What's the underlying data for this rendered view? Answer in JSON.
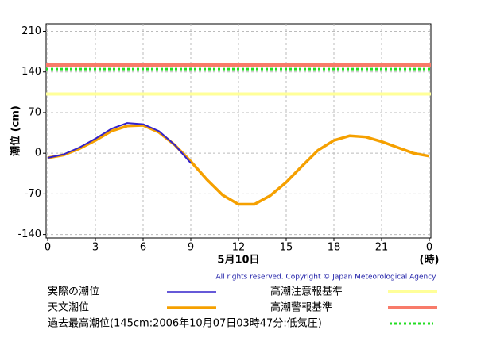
{
  "chart_data": {
    "type": "line",
    "y_label": "潮位 (cm)",
    "x_label": "5月10日",
    "x_unit": "(時)",
    "copyright": "All rights reserved. Copyright © Japan Meteorological Agency",
    "x": [
      0,
      1,
      2,
      3,
      4,
      5,
      6,
      7,
      8,
      9,
      10,
      11,
      12,
      13,
      14,
      15,
      16,
      17,
      18,
      19,
      20,
      21,
      22,
      23,
      24
    ],
    "series": [
      {
        "name": "実際の潮位",
        "color": "#3322cc",
        "values": [
          -8,
          -2,
          10,
          25,
          42,
          52,
          50,
          38,
          14,
          -17,
          null,
          null,
          null,
          null,
          null,
          null,
          null,
          null,
          null,
          null,
          null,
          null,
          null,
          null,
          null
        ]
      },
      {
        "name": "天文潮位",
        "color": "#f5a000",
        "values": [
          -8,
          -3,
          8,
          22,
          38,
          47,
          48,
          36,
          14,
          -14,
          -45,
          -72,
          -88,
          -88,
          -73,
          -50,
          -22,
          5,
          22,
          30,
          28,
          20,
          10,
          0,
          -5
        ]
      }
    ],
    "reference_lines": [
      {
        "name": "高潮注意報基準",
        "color": "#ffff99",
        "value": 102,
        "style": "solid"
      },
      {
        "name": "高潮警報基準",
        "color": "#f87b6a",
        "value": 152,
        "style": "solid"
      },
      {
        "name": "過去最高潮位(145cm:2006年10月07日03時47分:低気圧)",
        "color": "#22dd22",
        "value": 145,
        "style": "dotted"
      }
    ],
    "xlim": [
      0,
      24
    ],
    "xticks": [
      0,
      3,
      6,
      9,
      12,
      15,
      18,
      21,
      {
        "value": 24,
        "label": "0"
      }
    ],
    "ylim": [
      -146,
      223
    ],
    "yticks": [
      -140,
      -70,
      0,
      70,
      140,
      210
    ],
    "grid": true
  }
}
